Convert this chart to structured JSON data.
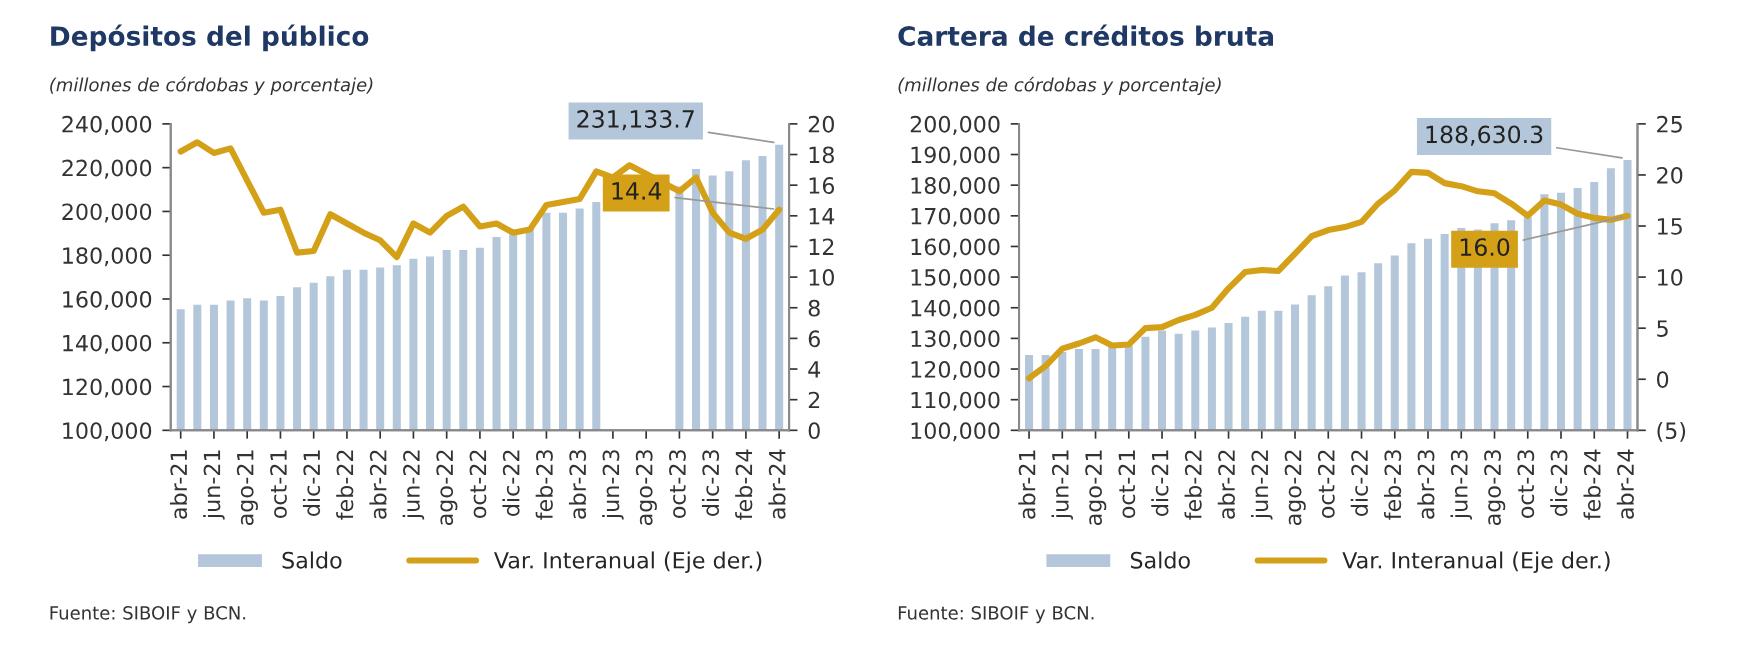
{
  "chart_data": [
    {
      "type": "bar",
      "title": "Depósitos del público",
      "subtitle": "(millones de córdobas y porcentaje)",
      "categories": [
        "abr-21",
        null,
        "jun-21",
        null,
        "ago-21",
        null,
        "oct-21",
        null,
        "dic-21",
        null,
        "feb-22",
        null,
        "abr-22",
        null,
        "jun-22",
        null,
        "ago-22",
        null,
        "oct-22",
        null,
        "dic-22",
        null,
        "feb-23",
        null,
        "abr-23",
        null,
        "jun-23",
        null,
        "ago-23",
        null,
        "oct-23",
        null,
        "dic-23",
        null,
        "feb-24",
        null,
        "abr-24"
      ],
      "series": [
        {
          "name": "Saldo",
          "color": "#b4c7da",
          "values": [
            156000,
            158000,
            158000,
            160000,
            161000,
            160000,
            162000,
            166000,
            168000,
            171000,
            174000,
            174000,
            175000,
            176000,
            179000,
            180000,
            183000,
            183000,
            184000,
            189000,
            191000,
            193000,
            200000,
            200000,
            202000,
            205000,
            null,
            null,
            null,
            null,
            212000,
            220000,
            217000,
            219000,
            224000,
            226000,
            231133.7
          ],
          "value_labels": [
            null,
            null,
            null,
            null,
            null,
            null,
            null,
            null,
            null,
            null,
            null,
            null,
            null,
            null,
            null,
            null,
            null,
            null,
            null,
            null,
            null,
            null,
            null,
            null,
            null,
            null,
            null,
            null,
            null,
            null,
            null,
            null,
            null,
            null,
            null,
            null,
            "231,133.7"
          ]
        },
        {
          "name": "Var. Interanual (Eje der.)",
          "type": "line",
          "axis": "y2",
          "color": "#d4a017",
          "values": [
            18.2,
            18.8,
            18.1,
            18.4,
            16.3,
            14.2,
            14.4,
            11.6,
            11.7,
            14.1,
            13.5,
            12.9,
            12.4,
            11.3,
            13.5,
            12.9,
            14.0,
            14.6,
            13.3,
            13.5,
            12.9,
            13.1,
            14.7,
            14.9,
            15.1,
            16.9,
            16.5,
            17.3,
            null,
            null,
            15.6,
            16.5,
            14.2,
            12.9,
            12.5,
            13.1,
            14.4
          ],
          "value_labels": [
            null,
            null,
            null,
            null,
            null,
            null,
            null,
            null,
            null,
            null,
            null,
            null,
            null,
            null,
            null,
            null,
            null,
            null,
            null,
            null,
            null,
            null,
            null,
            null,
            null,
            null,
            null,
            null,
            null,
            null,
            null,
            null,
            null,
            null,
            null,
            null,
            "14.4"
          ]
        }
      ],
      "ylim": [
        100000,
        240000
      ],
      "yticks": [
        {
          "value": 100000,
          "label": "100,000"
        },
        {
          "value": 120000,
          "label": "120,000"
        },
        {
          "value": 140000,
          "label": "140,000"
        },
        {
          "value": 160000,
          "label": "160,000"
        },
        {
          "value": 180000,
          "label": "180,000"
        },
        {
          "value": 200000,
          "label": "200,000"
        },
        {
          "value": 220000,
          "label": "220,000"
        },
        {
          "value": 240000,
          "label": "240,000"
        }
      ],
      "y2lim": [
        0,
        20
      ],
      "y2ticks": [
        0,
        2,
        4,
        6,
        8,
        10,
        12,
        14,
        16,
        18,
        20
      ],
      "legend": "bottom",
      "grid": false,
      "annotations": [
        "Fuente: SIBOIF y BCN."
      ]
    },
    {
      "type": "bar",
      "title": "Cartera de créditos bruta",
      "subtitle": "(millones de córdobas y porcentaje)",
      "categories": [
        "abr-21",
        null,
        "jun-21",
        null,
        "ago-21",
        null,
        "oct-21",
        null,
        "dic-21",
        null,
        "feb-22",
        null,
        "abr-22",
        null,
        "jun-22",
        null,
        "ago-22",
        null,
        "oct-22",
        null,
        "dic-22",
        null,
        "feb-23",
        null,
        "abr-23",
        null,
        "jun-23",
        null,
        "ago-23",
        null,
        "oct-23",
        null,
        "dic-23",
        null,
        "feb-24",
        null,
        "abr-24"
      ],
      "series": [
        {
          "name": "Saldo",
          "color": "#b4c7da",
          "values": [
            125000,
            125000,
            126000,
            127000,
            127000,
            128000,
            128000,
            131000,
            133000,
            132000,
            133000,
            134000,
            135500,
            137500,
            139500,
            139500,
            141500,
            144500,
            147500,
            151000,
            152000,
            155000,
            157500,
            161500,
            163000,
            164500,
            166500,
            166000,
            168000,
            169000,
            170000,
            177500,
            178000,
            179500,
            181500,
            186000,
            188630.3
          ],
          "value_labels": [
            null,
            null,
            null,
            null,
            null,
            null,
            null,
            null,
            null,
            null,
            null,
            null,
            null,
            null,
            null,
            null,
            null,
            null,
            null,
            null,
            null,
            null,
            null,
            null,
            null,
            null,
            null,
            null,
            null,
            null,
            null,
            null,
            null,
            null,
            null,
            null,
            "188,630.3"
          ]
        },
        {
          "name": "Var. Interanual (Eje der.)",
          "type": "line",
          "axis": "y2",
          "color": "#d4a017",
          "values": [
            0.1,
            1.3,
            3.0,
            3.5,
            4.1,
            3.3,
            3.4,
            5.0,
            5.1,
            5.8,
            6.3,
            7.0,
            8.9,
            10.5,
            10.7,
            10.6,
            12.3,
            14.0,
            14.6,
            14.9,
            15.4,
            17.2,
            18.5,
            20.3,
            20.2,
            19.2,
            18.9,
            18.4,
            18.2,
            17.2,
            16.0,
            17.5,
            17.1,
            16.2,
            15.8,
            15.6,
            16.0
          ],
          "value_labels": [
            null,
            null,
            null,
            null,
            null,
            null,
            null,
            null,
            null,
            null,
            null,
            null,
            null,
            null,
            null,
            null,
            null,
            null,
            null,
            null,
            null,
            null,
            null,
            null,
            null,
            null,
            null,
            null,
            null,
            null,
            null,
            null,
            null,
            null,
            null,
            null,
            "16.0"
          ]
        }
      ],
      "ylim": [
        100000,
        200000
      ],
      "yticks": [
        {
          "value": 100000,
          "label": "100,000"
        },
        {
          "value": 110000,
          "label": "110,000"
        },
        {
          "value": 120000,
          "label": "120,000"
        },
        {
          "value": 130000,
          "label": "130,000"
        },
        {
          "value": 140000,
          "label": "140,000"
        },
        {
          "value": 150000,
          "label": "150,000"
        },
        {
          "value": 160000,
          "label": "160,000"
        },
        {
          "value": 170000,
          "label": "170,000"
        },
        {
          "value": 180000,
          "label": "180,000"
        },
        {
          "value": 190000,
          "label": "190,000"
        },
        {
          "value": 200000,
          "label": "200,000"
        }
      ],
      "y2lim": [
        -5,
        25
      ],
      "y2ticks": [
        {
          "value": -5,
          "label": "(5)"
        },
        0,
        5,
        10,
        15,
        20,
        25
      ],
      "legend": "bottom",
      "grid": false,
      "annotations": [
        "Fuente: SIBOIF y BCN."
      ]
    }
  ]
}
